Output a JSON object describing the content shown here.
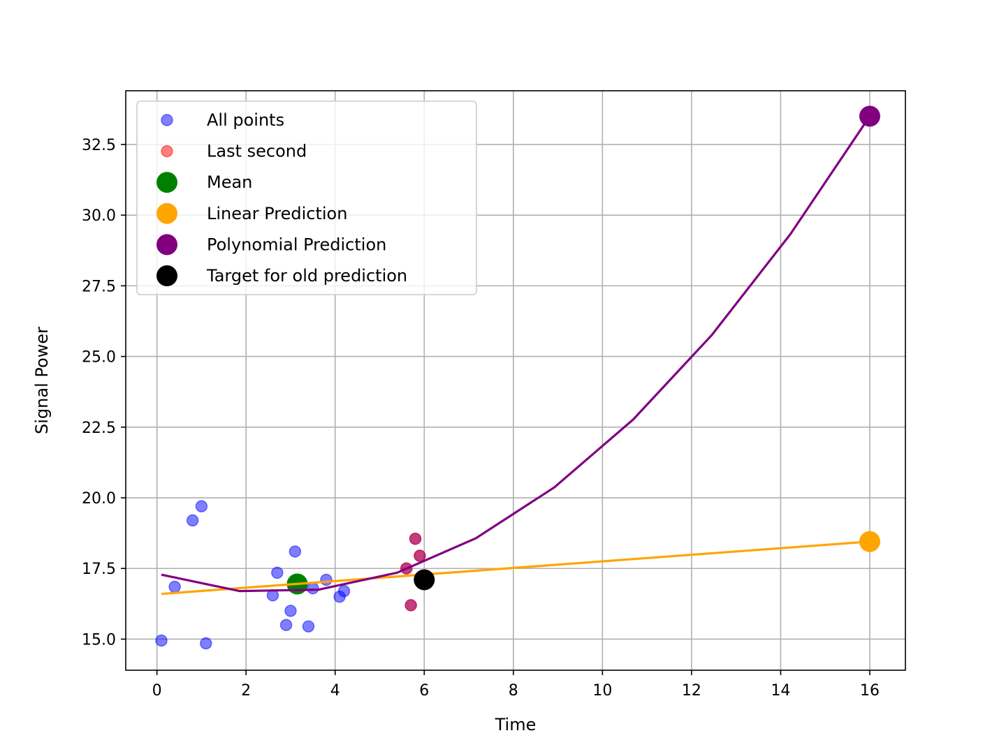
{
  "chart_data": {
    "type": "scatter",
    "title": "",
    "xlabel": "Time",
    "ylabel": "Signal Power",
    "xlim": [
      -0.7,
      16.8
    ],
    "ylim": [
      13.9,
      34.4
    ],
    "x_ticks": [
      0,
      2,
      4,
      6,
      8,
      10,
      12,
      14,
      16
    ],
    "x_tick_labels": [
      "0",
      "2",
      "4",
      "6",
      "8",
      "10",
      "12",
      "14",
      "16"
    ],
    "y_ticks": [
      15.0,
      17.5,
      20.0,
      22.5,
      25.0,
      27.5,
      30.0,
      32.5
    ],
    "y_tick_labels": [
      "15.0",
      "17.5",
      "20.0",
      "22.5",
      "25.0",
      "27.5",
      "30.0",
      "32.5"
    ],
    "grid": true,
    "legend_position": "upper-left",
    "colors": {
      "all_points": "#0000ff",
      "last_second": "#ff0000",
      "mean": "#008000",
      "linear": "#ffa500",
      "polynomial": "#800080",
      "target": "#000000",
      "grid": "#b0b0b0"
    },
    "series": [
      {
        "name": "All points",
        "kind": "scatter",
        "points": [
          [
            0.1,
            14.95
          ],
          [
            0.4,
            16.85
          ],
          [
            0.8,
            19.2
          ],
          [
            1.0,
            19.7
          ],
          [
            1.1,
            14.85
          ],
          [
            2.6,
            16.55
          ],
          [
            2.7,
            17.35
          ],
          [
            2.9,
            15.5
          ],
          [
            3.0,
            16.0
          ],
          [
            3.1,
            18.1
          ],
          [
            3.2,
            17.05
          ],
          [
            3.4,
            15.45
          ],
          [
            3.5,
            16.8
          ],
          [
            3.8,
            17.1
          ],
          [
            4.1,
            16.5
          ],
          [
            4.2,
            16.7
          ],
          [
            5.6,
            17.5
          ],
          [
            5.7,
            16.2
          ],
          [
            5.8,
            18.55
          ],
          [
            5.9,
            17.95
          ]
        ]
      },
      {
        "name": "Last second",
        "kind": "scatter",
        "points": [
          [
            5.6,
            17.5
          ],
          [
            5.7,
            16.2
          ],
          [
            5.8,
            18.55
          ],
          [
            5.9,
            17.95
          ]
        ]
      },
      {
        "name": "Mean",
        "kind": "marker",
        "points": [
          [
            3.15,
            16.95
          ]
        ]
      },
      {
        "name": "Linear Prediction",
        "kind": "line+marker",
        "line": [
          [
            0.1,
            16.6
          ],
          [
            16.0,
            18.45
          ]
        ],
        "marker": [
          16.0,
          18.45
        ]
      },
      {
        "name": "Polynomial Prediction",
        "kind": "line+marker",
        "line": [
          [
            0.1,
            17.28
          ],
          [
            1.86,
            16.7
          ],
          [
            3.63,
            16.75
          ],
          [
            5.39,
            17.35
          ],
          [
            7.16,
            18.57
          ],
          [
            8.92,
            20.37
          ],
          [
            10.69,
            22.77
          ],
          [
            12.45,
            25.75
          ],
          [
            14.22,
            29.33
          ],
          [
            16.0,
            33.5
          ]
        ],
        "marker": [
          16.0,
          33.5
        ]
      },
      {
        "name": "Target for old prediction",
        "kind": "marker",
        "points": [
          [
            6.0,
            17.1
          ]
        ]
      }
    ]
  }
}
